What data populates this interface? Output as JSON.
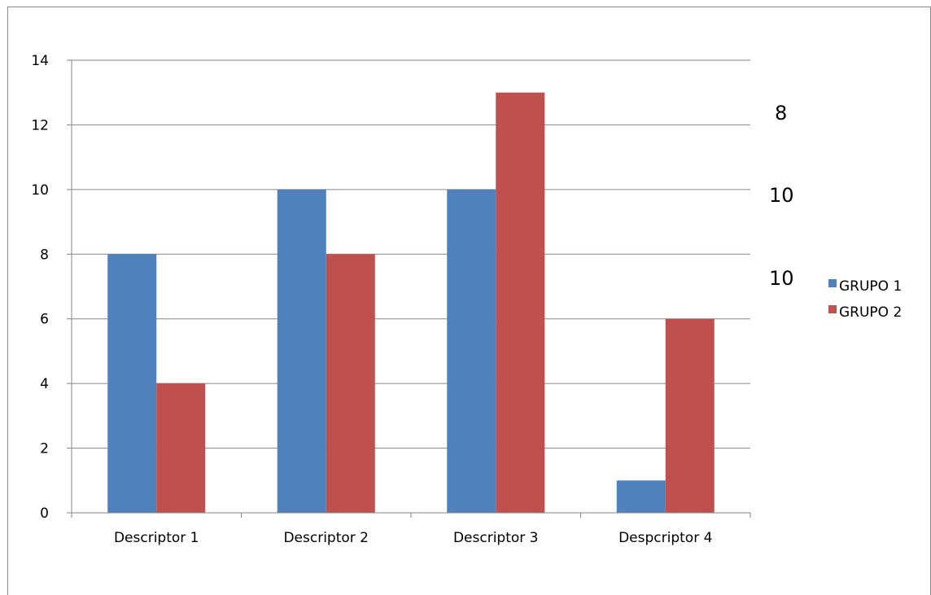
{
  "chart_data": {
    "type": "bar",
    "title": "",
    "xlabel": "",
    "ylabel": "",
    "categories": [
      "Descriptor 1",
      "Descriptor 2",
      "Descriptor 3",
      "Despcriptor 4"
    ],
    "series": [
      {
        "name": "GRUPO 1",
        "values": [
          8,
          10,
          10,
          1
        ],
        "color": "#4F81BD"
      },
      {
        "name": "GRUPO 2",
        "values": [
          4,
          8,
          13,
          6
        ],
        "color": "#C0504D"
      }
    ],
    "ylim": [
      0,
      14
    ],
    "yticks": [
      0,
      2,
      4,
      6,
      8,
      10,
      12,
      14
    ],
    "grid": true,
    "legend_position": "right"
  },
  "overlay_numbers": [
    "8",
    "10",
    "10"
  ],
  "colors": {
    "grid": "#868686",
    "axis": "#868686",
    "frame": "#888888"
  }
}
